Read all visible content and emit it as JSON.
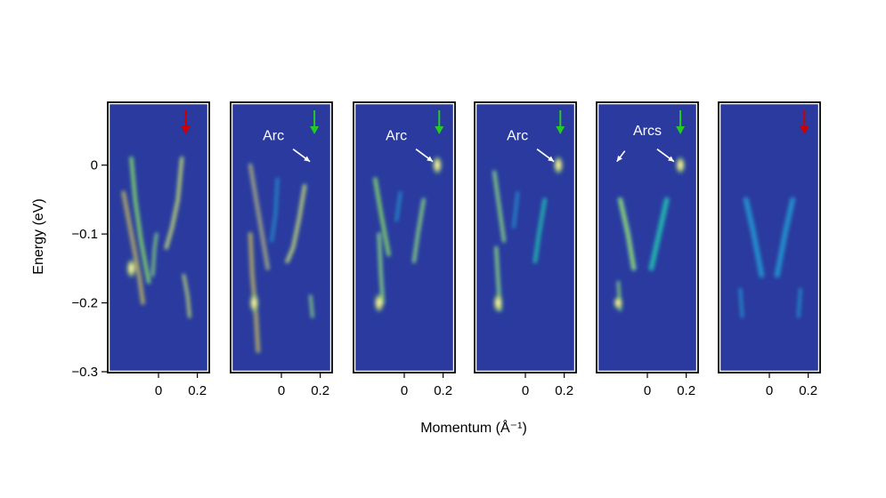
{
  "colors": {
    "background": "#2a3a9e",
    "intensity_ramp": [
      "#2a3a9e",
      "#2f5fc0",
      "#1e9ed0",
      "#24c7a0",
      "#9ee03c",
      "#e0d85a",
      "#c99a70",
      "#ffffff"
    ],
    "arrow_green": "#22cc22",
    "arrow_red": "#cc0000",
    "annotation": "#ffffff"
  },
  "chart_data": {
    "type": "heatmap",
    "ylabel": "Energy (eV)",
    "xlabel": "Momentum (Å⁻¹)",
    "ylim": [
      -0.3,
      0.09
    ],
    "yticks": [
      0,
      -0.1,
      -0.2,
      -0.3
    ],
    "ytick_labels": [
      "0",
      "−0.1",
      "−0.2",
      "−0.3"
    ],
    "xlim": [
      -0.22,
      0.22
    ],
    "xticks": [
      0,
      0.2
    ],
    "xtick_labels": [
      "0",
      "0.2"
    ],
    "panels": [
      {
        "arrow": {
          "color": "red",
          "k": 0.14
        },
        "annotations": [],
        "bands": [
          {
            "points": [
              [
                -0.18,
                -0.04
              ],
              [
                -0.14,
                -0.1
              ],
              [
                -0.1,
                -0.16
              ],
              [
                -0.08,
                -0.2
              ]
            ],
            "intensity": 0.85,
            "width": 0.012
          },
          {
            "points": [
              [
                -0.14,
                0.01
              ],
              [
                -0.12,
                -0.05
              ],
              [
                -0.09,
                -0.11
              ],
              [
                -0.05,
                -0.17
              ]
            ],
            "intensity": 0.6,
            "width": 0.012
          },
          {
            "points": [
              [
                0.12,
                0.01
              ],
              [
                0.1,
                -0.05
              ],
              [
                0.07,
                -0.09
              ],
              [
                0.04,
                -0.12
              ]
            ],
            "intensity": 0.75,
            "width": 0.012
          },
          {
            "points": [
              [
                -0.03,
                -0.16
              ],
              [
                -0.02,
                -0.12
              ],
              [
                -0.01,
                -0.1
              ]
            ],
            "intensity": 0.5,
            "width": 0.01
          },
          {
            "points": [
              [
                0.13,
                -0.16
              ],
              [
                0.15,
                -0.19
              ],
              [
                0.16,
                -0.22
              ]
            ],
            "intensity": 0.7,
            "width": 0.01
          }
        ],
        "hotspots": [
          {
            "k": -0.14,
            "e": -0.15,
            "intensity": 1.0
          }
        ]
      },
      {
        "arrow": {
          "color": "green",
          "k": 0.17
        },
        "annotations": [
          {
            "text": "Arc",
            "target_k": 0.17,
            "target_e": 0.0
          }
        ],
        "bands": [
          {
            "points": [
              [
                -0.16,
                0.0
              ],
              [
                -0.13,
                -0.05
              ],
              [
                -0.1,
                -0.1
              ],
              [
                -0.07,
                -0.15
              ]
            ],
            "intensity": 0.8,
            "width": 0.012
          },
          {
            "points": [
              [
                -0.16,
                -0.1
              ],
              [
                -0.15,
                -0.16
              ],
              [
                -0.13,
                -0.22
              ],
              [
                -0.12,
                -0.27
              ]
            ],
            "intensity": 0.85,
            "width": 0.012
          },
          {
            "points": [
              [
                0.12,
                -0.03
              ],
              [
                0.09,
                -0.08
              ],
              [
                0.06,
                -0.12
              ],
              [
                0.03,
                -0.14
              ]
            ],
            "intensity": 0.65,
            "width": 0.012
          },
          {
            "points": [
              [
                -0.02,
                -0.02
              ],
              [
                -0.03,
                -0.07
              ],
              [
                -0.05,
                -0.11
              ]
            ],
            "intensity": 0.35,
            "width": 0.01
          },
          {
            "points": [
              [
                0.15,
                -0.19
              ],
              [
                0.16,
                -0.22
              ]
            ],
            "intensity": 0.5,
            "width": 0.01
          }
        ],
        "hotspots": [
          {
            "k": -0.14,
            "e": -0.2,
            "intensity": 1.0
          }
        ]
      },
      {
        "arrow": {
          "color": "green",
          "k": 0.18
        },
        "annotations": [
          {
            "text": "Arc",
            "target_k": 0.17,
            "target_e": 0.0
          }
        ],
        "bands": [
          {
            "points": [
              [
                -0.15,
                -0.02
              ],
              [
                -0.12,
                -0.07
              ],
              [
                -0.1,
                -0.1
              ],
              [
                -0.08,
                -0.13
              ]
            ],
            "intensity": 0.6,
            "width": 0.012
          },
          {
            "points": [
              [
                -0.13,
                -0.1
              ],
              [
                -0.12,
                -0.16
              ],
              [
                -0.11,
                -0.2
              ]
            ],
            "intensity": 0.55,
            "width": 0.012
          },
          {
            "points": [
              [
                0.1,
                -0.05
              ],
              [
                0.07,
                -0.1
              ],
              [
                0.05,
                -0.14
              ]
            ],
            "intensity": 0.5,
            "width": 0.012
          },
          {
            "points": [
              [
                -0.02,
                -0.04
              ],
              [
                -0.04,
                -0.08
              ]
            ],
            "intensity": 0.3,
            "width": 0.01
          }
        ],
        "hotspots": [
          {
            "k": -0.13,
            "e": -0.2,
            "intensity": 1.0
          },
          {
            "k": 0.17,
            "e": 0.0,
            "intensity": 0.95
          }
        ]
      },
      {
        "arrow": {
          "color": "green",
          "k": 0.18
        },
        "annotations": [
          {
            "text": "Arc",
            "target_k": 0.17,
            "target_e": 0.0
          }
        ],
        "bands": [
          {
            "points": [
              [
                -0.16,
                -0.01
              ],
              [
                -0.13,
                -0.07
              ],
              [
                -0.11,
                -0.11
              ]
            ],
            "intensity": 0.55,
            "width": 0.012
          },
          {
            "points": [
              [
                -0.15,
                -0.12
              ],
              [
                -0.14,
                -0.17
              ],
              [
                -0.13,
                -0.21
              ]
            ],
            "intensity": 0.55,
            "width": 0.012
          },
          {
            "points": [
              [
                0.1,
                -0.05
              ],
              [
                0.07,
                -0.1
              ],
              [
                0.05,
                -0.14
              ]
            ],
            "intensity": 0.45,
            "width": 0.012
          },
          {
            "points": [
              [
                -0.04,
                -0.04
              ],
              [
                -0.06,
                -0.09
              ]
            ],
            "intensity": 0.3,
            "width": 0.01
          }
        ],
        "hotspots": [
          {
            "k": -0.14,
            "e": -0.2,
            "intensity": 1.0
          },
          {
            "k": 0.17,
            "e": 0.0,
            "intensity": 0.95
          }
        ]
      },
      {
        "arrow": {
          "color": "green",
          "k": 0.17
        },
        "annotations": [
          {
            "text": "Arcs",
            "target_k": -0.18,
            "target_e": 0.0
          },
          {
            "text": "Arcs",
            "target_k": 0.16,
            "target_e": 0.0,
            "hide_label": true
          }
        ],
        "bands": [
          {
            "points": [
              [
                -0.14,
                -0.05
              ],
              [
                -0.1,
                -0.1
              ],
              [
                -0.07,
                -0.15
              ]
            ],
            "intensity": 0.5,
            "width": 0.016
          },
          {
            "points": [
              [
                0.1,
                -0.05
              ],
              [
                0.06,
                -0.1
              ],
              [
                0.02,
                -0.15
              ]
            ],
            "intensity": 0.45,
            "width": 0.016
          },
          {
            "points": [
              [
                -0.15,
                -0.17
              ],
              [
                -0.14,
                -0.21
              ]
            ],
            "intensity": 0.55,
            "width": 0.01
          }
        ],
        "hotspots": [
          {
            "k": 0.17,
            "e": 0.0,
            "intensity": 0.9
          },
          {
            "k": -0.15,
            "e": -0.2,
            "intensity": 0.7
          }
        ]
      },
      {
        "arrow": {
          "color": "red",
          "k": 0.18
        },
        "annotations": [],
        "bands": [
          {
            "points": [
              [
                -0.12,
                -0.05
              ],
              [
                -0.08,
                -0.1
              ],
              [
                -0.04,
                -0.16
              ]
            ],
            "intensity": 0.35,
            "width": 0.018
          },
          {
            "points": [
              [
                0.12,
                -0.05
              ],
              [
                0.08,
                -0.1
              ],
              [
                0.04,
                -0.16
              ]
            ],
            "intensity": 0.35,
            "width": 0.018
          },
          {
            "points": [
              [
                -0.15,
                -0.18
              ],
              [
                -0.14,
                -0.22
              ]
            ],
            "intensity": 0.3,
            "width": 0.01
          },
          {
            "points": [
              [
                0.16,
                -0.18
              ],
              [
                0.15,
                -0.22
              ]
            ],
            "intensity": 0.3,
            "width": 0.01
          }
        ],
        "hotspots": []
      }
    ]
  }
}
